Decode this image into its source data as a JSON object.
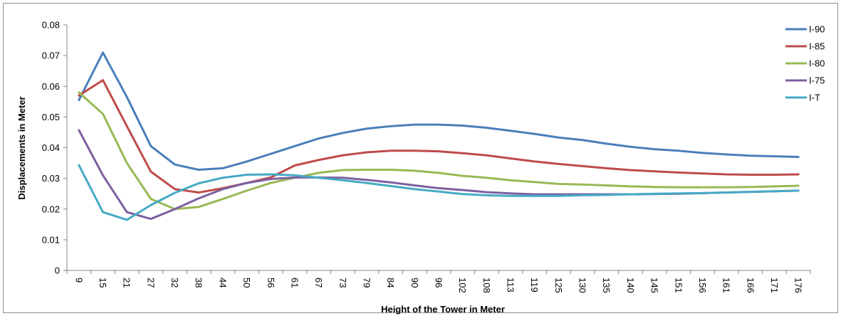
{
  "chart_data": {
    "type": "line",
    "title": "",
    "xlabel": "Height of the Tower in Meter",
    "ylabel": "Displacements in Meter",
    "ylim": [
      0,
      0.08
    ],
    "y_ticks": [
      "0",
      "0.01",
      "0.02",
      "0.03",
      "0.04",
      "0.05",
      "0.06",
      "0.07",
      "0.08"
    ],
    "grid": false,
    "legend_position": "top-right",
    "categories": [
      "9",
      "15",
      "21",
      "27",
      "32",
      "38",
      "44",
      "50",
      "56",
      "61",
      "67",
      "73",
      "79",
      "84",
      "90",
      "96",
      "102",
      "108",
      "113",
      "119",
      "125",
      "130",
      "135",
      "140",
      "145",
      "151",
      "156",
      "161",
      "166",
      "171",
      "176"
    ],
    "series": [
      {
        "name": "I-90",
        "color": "#4a7ebb",
        "values": [
          0.0555,
          0.071,
          0.0565,
          0.0405,
          0.0345,
          0.0328,
          0.0333,
          0.0355,
          0.038,
          0.0405,
          0.043,
          0.0448,
          0.0462,
          0.047,
          0.0475,
          0.0475,
          0.0472,
          0.0465,
          0.0455,
          0.0445,
          0.0433,
          0.0425,
          0.0413,
          0.0403,
          0.0395,
          0.039,
          0.0383,
          0.0378,
          0.0374,
          0.0372,
          0.037
        ]
      },
      {
        "name": "I-85",
        "color": "#be4b48",
        "values": [
          0.057,
          0.062,
          0.047,
          0.0322,
          0.0265,
          0.0254,
          0.0268,
          0.0285,
          0.0303,
          0.0342,
          0.036,
          0.0375,
          0.0385,
          0.039,
          0.039,
          0.0388,
          0.0382,
          0.0375,
          0.0365,
          0.0355,
          0.0347,
          0.034,
          0.0333,
          0.0327,
          0.0323,
          0.0319,
          0.0316,
          0.0313,
          0.0312,
          0.0312,
          0.0313
        ]
      },
      {
        "name": "I-80",
        "color": "#98b954",
        "values": [
          0.058,
          0.051,
          0.035,
          0.0233,
          0.02,
          0.0207,
          0.0233,
          0.026,
          0.0285,
          0.0302,
          0.0318,
          0.0327,
          0.0328,
          0.0328,
          0.0325,
          0.0318,
          0.0308,
          0.0302,
          0.0294,
          0.0288,
          0.0282,
          0.028,
          0.0277,
          0.0274,
          0.0272,
          0.0271,
          0.0271,
          0.0271,
          0.0272,
          0.0274,
          0.0276
        ]
      },
      {
        "name": "I-75",
        "color": "#7d5fa0",
        "values": [
          0.0457,
          0.031,
          0.019,
          0.0168,
          0.02,
          0.0235,
          0.0265,
          0.0285,
          0.0298,
          0.0303,
          0.0303,
          0.0302,
          0.0295,
          0.0287,
          0.0277,
          0.0268,
          0.0262,
          0.0255,
          0.0251,
          0.0248,
          0.0248,
          0.0248,
          0.0248,
          0.0248,
          0.0249,
          0.025,
          0.0252,
          0.0254,
          0.0256,
          0.0258,
          0.026
        ]
      },
      {
        "name": "I-T",
        "color": "#46aac5",
        "values": [
          0.0343,
          0.019,
          0.0165,
          0.0213,
          0.0253,
          0.0284,
          0.0302,
          0.0312,
          0.0313,
          0.031,
          0.0302,
          0.0294,
          0.0285,
          0.0275,
          0.0265,
          0.0257,
          0.0249,
          0.0245,
          0.0243,
          0.0243,
          0.0243,
          0.0245,
          0.0246,
          0.0248,
          0.025,
          0.0251,
          0.0252,
          0.0254,
          0.0256,
          0.0258,
          0.026
        ]
      }
    ]
  }
}
